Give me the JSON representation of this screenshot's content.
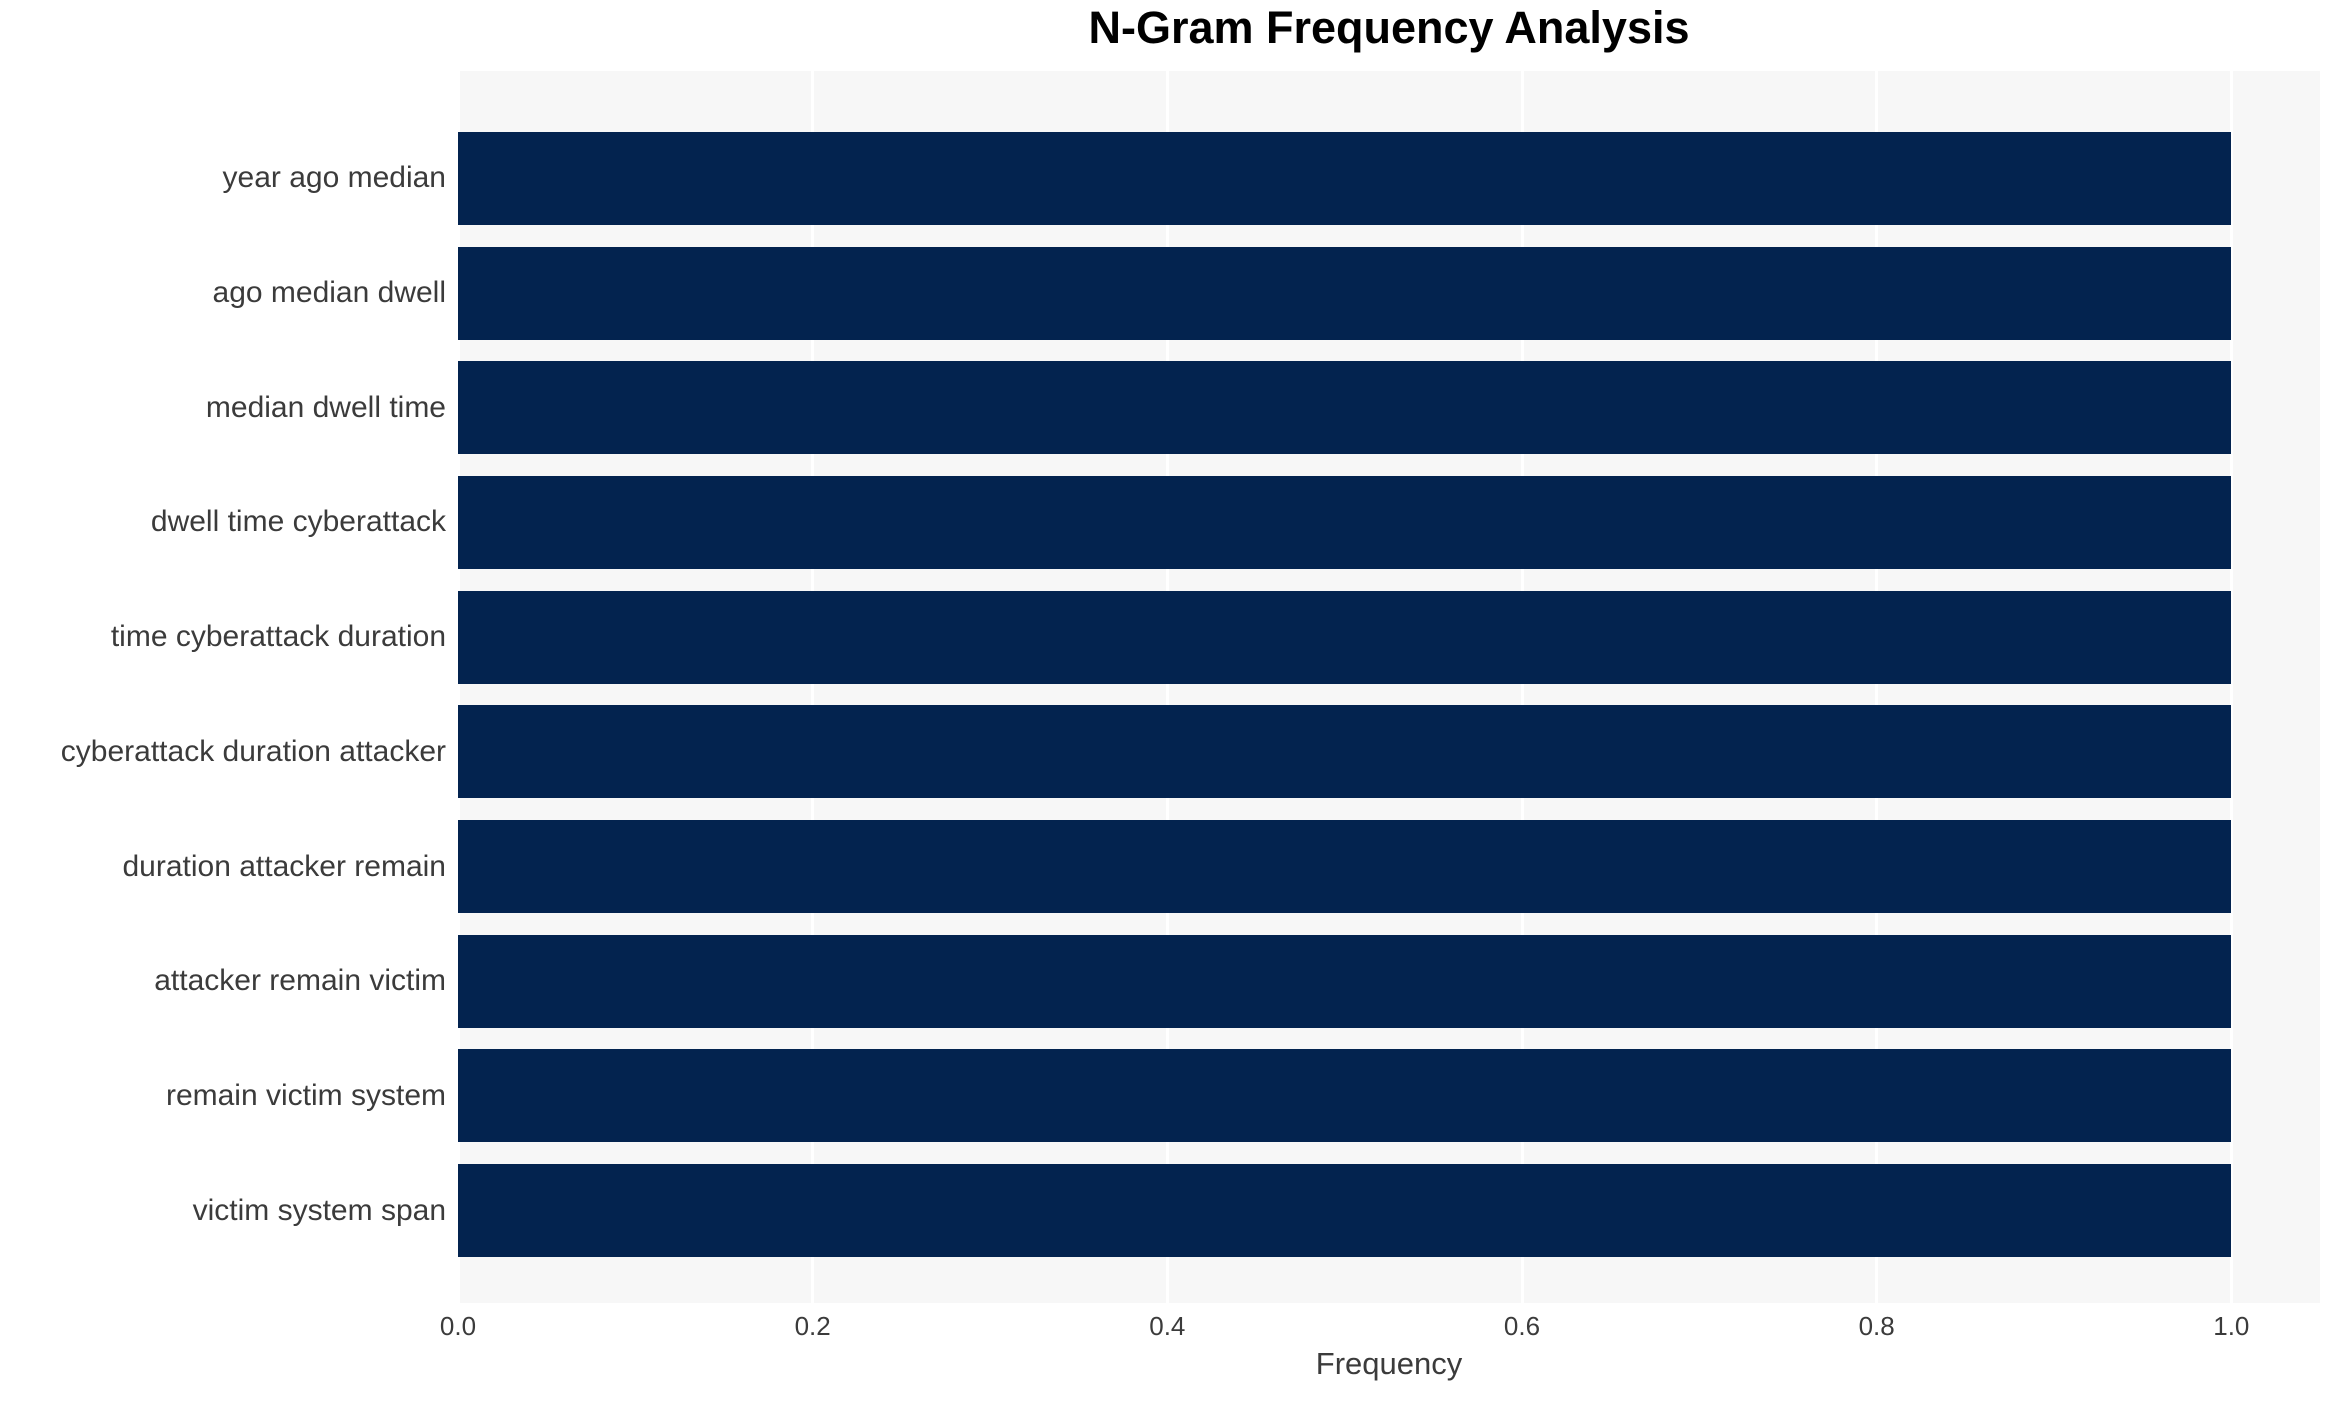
{
  "chart_data": {
    "type": "bar",
    "orientation": "horizontal",
    "title": "N-Gram Frequency Analysis",
    "xlabel": "Frequency",
    "ylabel": "",
    "categories": [
      "year ago median",
      "ago median dwell",
      "median dwell time",
      "dwell time cyberattack",
      "time cyberattack duration",
      "cyberattack duration attacker",
      "duration attacker remain",
      "attacker remain victim",
      "remain victim system",
      "victim system span"
    ],
    "values": [
      1.0,
      1.0,
      1.0,
      1.0,
      1.0,
      1.0,
      1.0,
      1.0,
      1.0,
      1.0
    ],
    "xlim": [
      0,
      1.05
    ],
    "xticks": [
      {
        "value": 0.0,
        "label": "0.0"
      },
      {
        "value": 0.2,
        "label": "0.2"
      },
      {
        "value": 0.4,
        "label": "0.4"
      },
      {
        "value": 0.6,
        "label": "0.6"
      },
      {
        "value": 0.8,
        "label": "0.8"
      },
      {
        "value": 1.0,
        "label": "1.0"
      }
    ],
    "grid": "vertical-only",
    "legend": "none",
    "colors": {
      "bar": "#03234F",
      "plot_background": "#f7f7f7",
      "gridline": "#ffffff",
      "figure_background": "#ffffff",
      "tick_text": "#3b3b3b",
      "title_text": "#000000"
    }
  }
}
